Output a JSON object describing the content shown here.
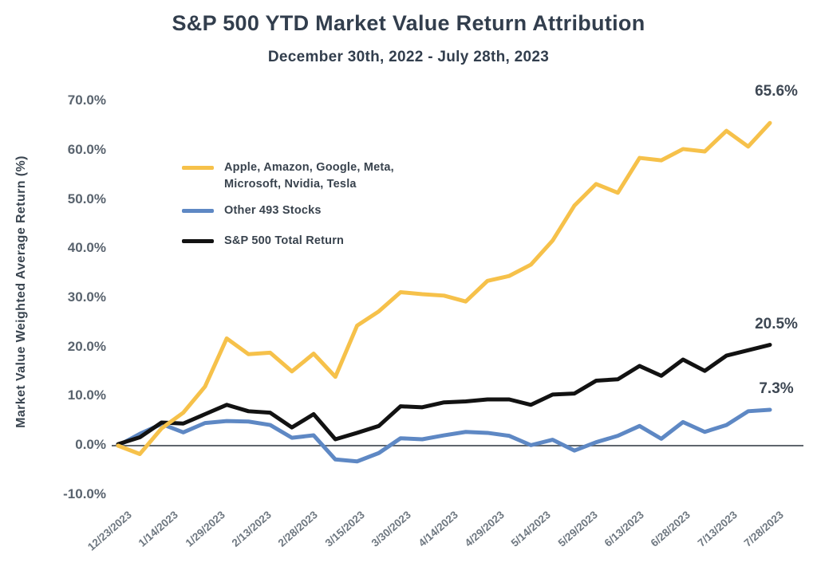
{
  "chart_data": {
    "type": "line",
    "title": "S&P 500 YTD Market Value Return Attribution",
    "subtitle": "December 30th, 2022 - July 28th, 2023",
    "ylabel": "Market Value Weighted Average Return (%)",
    "xlabel": "",
    "ylim": [
      -10,
      70
    ],
    "grid": false,
    "zero_line": true,
    "legend_position": "inside-top-left",
    "x": [
      "12/30/2022",
      "1/6/2023",
      "1/13/2023",
      "1/20/2023",
      "1/27/2023",
      "2/3/2023",
      "2/10/2023",
      "2/17/2023",
      "2/24/2023",
      "3/3/2023",
      "3/10/2023",
      "3/17/2023",
      "3/24/2023",
      "3/31/2023",
      "4/7/2023",
      "4/14/2023",
      "4/21/2023",
      "4/28/2023",
      "5/5/2023",
      "5/12/2023",
      "5/19/2023",
      "5/26/2023",
      "6/2/2023",
      "6/9/2023",
      "6/16/2023",
      "6/23/2023",
      "6/30/2023",
      "7/7/2023",
      "7/14/2023",
      "7/21/2023",
      "7/28/2023"
    ],
    "x_tick_labels": [
      "12/23/2023",
      "1/14/2023",
      "1/29/2023",
      "2/13/2023",
      "2/28/2023",
      "3/15/2023",
      "3/30/2023",
      "4/14/2023",
      "4/29/2023",
      "5/14/2023",
      "5/29/2023",
      "6/13/2023",
      "6/28/2023",
      "7/13/2023",
      "7/28/2023"
    ],
    "y_tick_labels": [
      "70.0%",
      "60.0%",
      "50.0%",
      "40.0%",
      "30.0%",
      "20.0%",
      "10.0%",
      "0.0%",
      "-10.0%"
    ],
    "y_tick_values": [
      70,
      60,
      50,
      40,
      30,
      20,
      10,
      0,
      -10
    ],
    "series": [
      {
        "key": "mag7",
        "name": "Apple, Amazon, Google, Meta,\nMicrosoft, Nvidia, Tesla",
        "color": "#F6C14A",
        "end_label": "65.6%",
        "values": [
          0.0,
          -1.7,
          3.5,
          6.7,
          12.0,
          21.8,
          18.6,
          18.9,
          15.1,
          18.7,
          14.0,
          24.4,
          27.3,
          31.2,
          30.8,
          30.5,
          29.3,
          33.5,
          34.5,
          36.8,
          41.7,
          48.8,
          53.2,
          51.4,
          58.5,
          58.0,
          60.3,
          59.8,
          64.0,
          60.8,
          65.6
        ]
      },
      {
        "key": "other493",
        "name": "Other 493 Stocks",
        "color": "#5E88C4",
        "end_label": "7.3%",
        "values": [
          0.0,
          2.4,
          4.4,
          2.7,
          4.6,
          5.0,
          4.9,
          4.2,
          1.6,
          2.1,
          -2.8,
          -3.2,
          -1.5,
          1.5,
          1.3,
          2.1,
          2.8,
          2.6,
          2.0,
          0.1,
          1.2,
          -1.0,
          0.7,
          2.0,
          4.0,
          1.4,
          4.8,
          2.8,
          4.2,
          7.0,
          7.3
        ]
      },
      {
        "key": "sp500",
        "name": "S&P 500 Total Return",
        "color": "#121212",
        "end_label": "20.5%",
        "values": [
          0.3,
          1.7,
          4.7,
          4.5,
          6.4,
          8.3,
          7.0,
          6.7,
          3.7,
          6.4,
          1.3,
          2.6,
          4.0,
          8.0,
          7.8,
          8.8,
          9.0,
          9.4,
          9.4,
          8.3,
          10.4,
          10.6,
          13.2,
          13.5,
          16.2,
          14.2,
          17.5,
          15.2,
          18.3,
          19.4,
          20.5
        ]
      }
    ]
  },
  "colors": {
    "title_text": "#323E4D",
    "axis_text": "#59636E",
    "x_tick_text": "#6E7780",
    "end_label_text": "#3D4753",
    "zero_line": "#5F666D"
  }
}
